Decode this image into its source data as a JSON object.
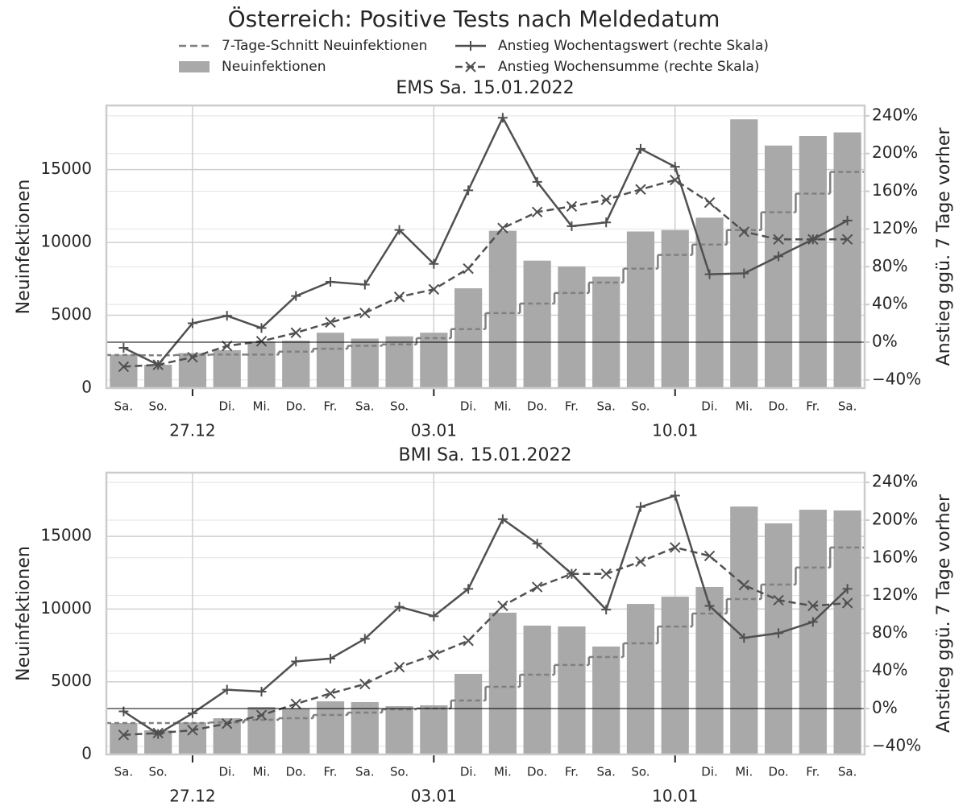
{
  "title": "Österreich: Positive Tests nach Meldedatum",
  "chart_data": [
    {
      "type": "combo",
      "title": "EMS Sa. 15.01.2022",
      "ylabel": "Neuinfektionen",
      "y2label": "Anstieg ggü. 7 Tage vorher",
      "categories": [
        "Sa.",
        "So.",
        null,
        "Di.",
        "Mi.",
        "Do.",
        "Fr.",
        "Sa.",
        "So.",
        null,
        "Di.",
        "Mi.",
        "Do.",
        "Fr.",
        "Sa.",
        "So.",
        null,
        "Di.",
        "Mi.",
        "Do.",
        "Fr.",
        "Sa."
      ],
      "major_labels": [
        null,
        null,
        "27.12",
        null,
        null,
        null,
        null,
        null,
        null,
        "03.01",
        null,
        null,
        null,
        null,
        null,
        null,
        "10.01",
        null,
        null,
        null,
        null,
        null
      ],
      "ylim": [
        0,
        19400
      ],
      "yticks": [
        0,
        5000,
        10000,
        15000
      ],
      "y2lim": [
        -48.7,
        251
      ],
      "y2ticks": [
        {
          "value": -40,
          "label": "−40%"
        },
        {
          "value": 0,
          "label": "0%"
        },
        {
          "value": 40,
          "label": "40%"
        },
        {
          "value": 80,
          "label": "80%"
        },
        {
          "value": 120,
          "label": "120%"
        },
        {
          "value": 160,
          "label": "160%"
        },
        {
          "value": 200,
          "label": "200%"
        },
        {
          "value": 240,
          "label": "240%"
        }
      ],
      "y2_hline": 0,
      "grid": true,
      "series": [
        {
          "name": "7-Tage-Schnitt Neuinfektionen",
          "type": "step",
          "linestyle": "dashed",
          "color": "#808080",
          "values": [
            2270,
            2250,
            2270,
            2300,
            2300,
            2500,
            2700,
            2900,
            3000,
            3430,
            4050,
            5150,
            5800,
            6530,
            7250,
            8200,
            9140,
            9850,
            10850,
            12070,
            13350,
            14840
          ]
        },
        {
          "name": "Neuinfektionen",
          "type": "bar",
          "color": "#a9a9a9",
          "values": [
            2300,
            1600,
            2400,
            2600,
            3200,
            3250,
            3800,
            3400,
            3550,
            3800,
            6850,
            10800,
            8750,
            8350,
            7650,
            10750,
            10850,
            11700,
            18450,
            16650,
            17300,
            17550
          ]
        },
        {
          "name": "Anstieg Wochentagswert (rechte Skala)",
          "type": "line",
          "linestyle": "solid",
          "marker": "+",
          "axis": "y2",
          "color": "#505050",
          "values": [
            -6,
            -24,
            20,
            28,
            15,
            49,
            64,
            61,
            119,
            83,
            161,
            238,
            170,
            123,
            127,
            205,
            186,
            72,
            73,
            91,
            109,
            129
          ]
        },
        {
          "name": "Anstieg Wochensumme (rechte Skala)",
          "type": "line",
          "linestyle": "dashed",
          "marker": "x",
          "axis": "y2",
          "color": "#505050",
          "values": [
            -26,
            -24,
            -16,
            -4,
            1,
            10,
            21,
            31,
            48,
            56,
            78,
            121,
            138,
            144,
            151,
            162,
            172,
            148,
            117,
            109,
            109,
            109
          ]
        }
      ]
    },
    {
      "type": "combo",
      "title": "BMI Sa. 15.01.2022",
      "ylabel": "Neuinfektionen",
      "y2label": "Anstieg ggü. 7 Tage vorher",
      "categories": [
        "Sa.",
        "So.",
        null,
        "Di.",
        "Mi.",
        "Do.",
        "Fr.",
        "Sa.",
        "So.",
        null,
        "Di.",
        "Mi.",
        "Do.",
        "Fr.",
        "Sa.",
        "So.",
        null,
        "Di.",
        "Mi.",
        "Do.",
        "Fr.",
        "Sa."
      ],
      "major_labels": [
        null,
        null,
        "27.12",
        null,
        null,
        null,
        null,
        null,
        null,
        "03.01",
        null,
        null,
        null,
        null,
        null,
        null,
        "10.01",
        null,
        null,
        null,
        null,
        null
      ],
      "ylim": [
        0,
        19380
      ],
      "yticks": [
        0,
        5000,
        10000,
        15000
      ],
      "y2lim": [
        -48.7,
        250.4
      ],
      "y2ticks": [
        {
          "value": -40,
          "label": "−40%"
        },
        {
          "value": 0,
          "label": "0%"
        },
        {
          "value": 40,
          "label": "40%"
        },
        {
          "value": 80,
          "label": "80%"
        },
        {
          "value": 120,
          "label": "120%"
        },
        {
          "value": 160,
          "label": "160%"
        },
        {
          "value": 200,
          "label": "200%"
        },
        {
          "value": 240,
          "label": "240%"
        }
      ],
      "y2_hline": 0,
      "grid": true,
      "series": [
        {
          "name": "7-Tage-Schnitt Neuinfektionen",
          "type": "step",
          "linestyle": "dashed",
          "color": "#808080",
          "values": [
            2160,
            2160,
            2160,
            2200,
            2380,
            2490,
            2710,
            2880,
            3100,
            3160,
            3710,
            4650,
            5480,
            6150,
            6700,
            7640,
            8800,
            9690,
            10690,
            11680,
            12850,
            14230
          ]
        },
        {
          "name": "Neuinfektionen",
          "type": "bar",
          "color": "#a9a9a9",
          "values": [
            2160,
            1660,
            2200,
            2490,
            3270,
            3160,
            3650,
            3600,
            3320,
            3380,
            5540,
            9750,
            8860,
            8800,
            7420,
            10350,
            10850,
            11520,
            17050,
            15890,
            16830,
            16780
          ]
        },
        {
          "name": "Anstieg Wochentagswert (rechte Skala)",
          "type": "line",
          "linestyle": "solid",
          "marker": "+",
          "axis": "y2",
          "color": "#505050",
          "values": [
            -3,
            -27,
            -5,
            20,
            18,
            50,
            53,
            74,
            108,
            98,
            127,
            201,
            175,
            143,
            105,
            214,
            226,
            109,
            75,
            80,
            92,
            127
          ]
        },
        {
          "name": "Anstieg Wochensumme (rechte Skala)",
          "type": "line",
          "linestyle": "dashed",
          "marker": "x",
          "axis": "y2",
          "color": "#505050",
          "values": [
            -28,
            -26,
            -23,
            -16,
            -7,
            5,
            16,
            26,
            44,
            57,
            72,
            109,
            129,
            143,
            143,
            156,
            171,
            162,
            131,
            115,
            109,
            112
          ]
        }
      ]
    }
  ]
}
